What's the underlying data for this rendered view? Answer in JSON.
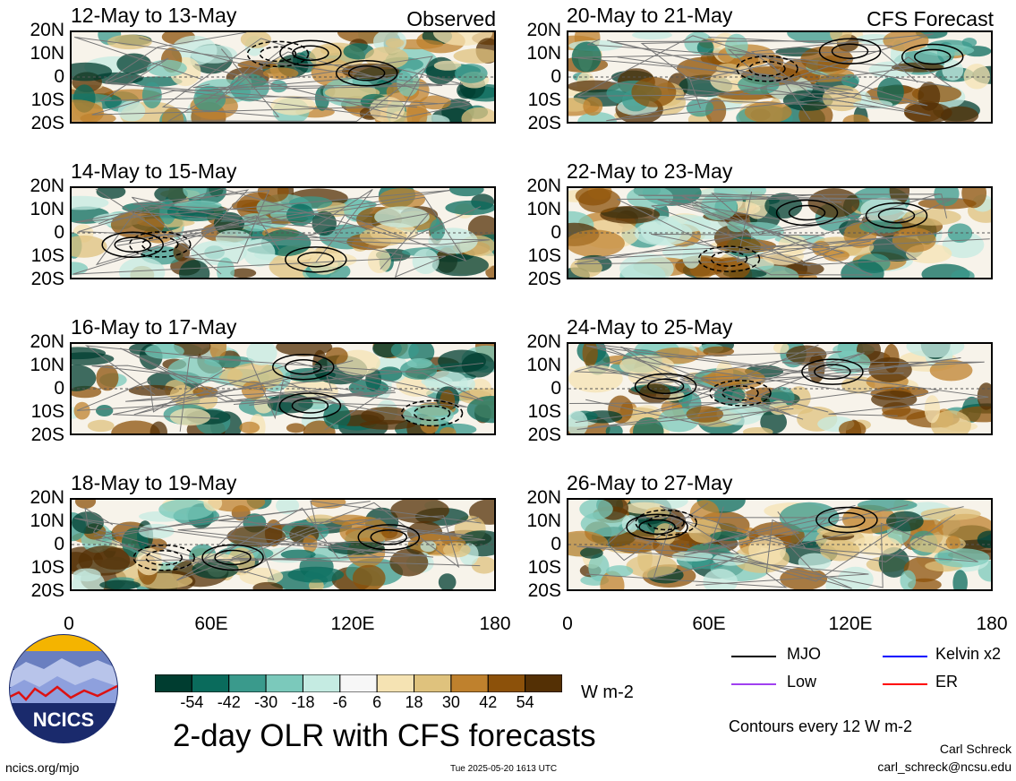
{
  "panels": [
    {
      "title": "12-May to 13-May",
      "tag": "Observed"
    },
    {
      "title": "20-May to 21-May",
      "tag": "CFS Forecast"
    },
    {
      "title": "14-May to 15-May",
      "tag": ""
    },
    {
      "title": "22-May to 23-May",
      "tag": ""
    },
    {
      "title": "16-May to 17-May",
      "tag": ""
    },
    {
      "title": "24-May to 25-May",
      "tag": ""
    },
    {
      "title": "18-May to 19-May",
      "tag": ""
    },
    {
      "title": "26-May to 27-May",
      "tag": ""
    }
  ],
  "y_ticks": [
    "20N",
    "10N",
    "0",
    "10S",
    "20S"
  ],
  "x_ticks": [
    "0",
    "60E",
    "120E",
    "180"
  ],
  "colorbar": {
    "ticks": [
      "-54",
      "-42",
      "-30",
      "-18",
      "-6",
      "6",
      "18",
      "30",
      "42",
      "54"
    ],
    "colors": [
      "#003d30",
      "#0a6b5c",
      "#3a9a8c",
      "#7bc9bb",
      "#c5ebe2",
      "#f7f7f7",
      "#f5e3b3",
      "#dfc27d",
      "#bf812d",
      "#8c510a",
      "#543005"
    ],
    "units": "W m-2"
  },
  "legend": [
    {
      "label": "MJO",
      "color": "#000000"
    },
    {
      "label": "Kelvin x2",
      "color": "#0000ff"
    },
    {
      "label": "Low",
      "color": "#a040f0"
    },
    {
      "label": "ER",
      "color": "#ff0000"
    }
  ],
  "main_title": "2-day OLR with CFS forecasts",
  "contour_note": "Contours every 12 W m-2",
  "author": "Carl Schreck",
  "email": "carl_schreck@ncsu.edu",
  "site": "ncics.org/mjo",
  "timestamp": "Tue 2025-05-20 1613 UTC",
  "logo_text": "NCICS",
  "chart_data": {
    "type": "heatmap",
    "title": "2-day OLR with CFS forecasts",
    "xlabel": "",
    "ylabel": "",
    "x_range": [
      "0",
      "180"
    ],
    "y_range": [
      "20S",
      "20N"
    ],
    "units": "W m-2",
    "color_levels": [
      -54,
      -42,
      -30,
      -18,
      -6,
      6,
      18,
      30,
      42,
      54
    ],
    "panels": [
      "12-May to 13-May",
      "14-May to 15-May",
      "16-May to 17-May",
      "18-May to 19-May",
      "20-May to 21-May",
      "22-May to 23-May",
      "24-May to 25-May",
      "26-May to 27-May"
    ]
  }
}
